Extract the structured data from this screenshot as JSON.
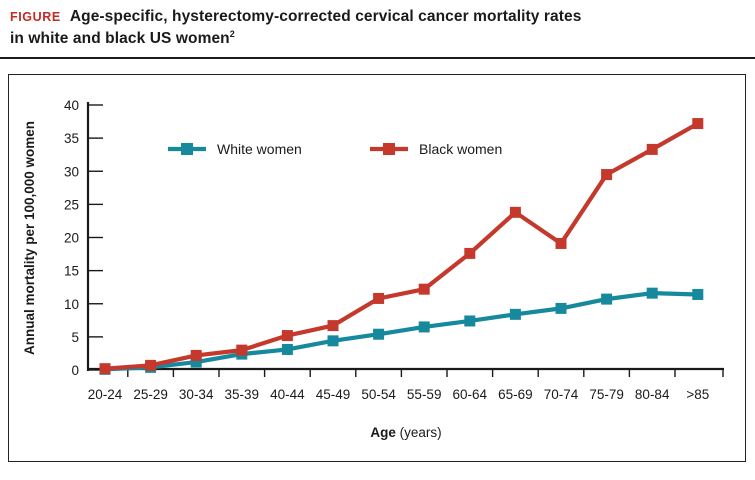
{
  "figure": {
    "label": "FIGURE",
    "title_line1": "Age-specific, hysterectomy-corrected cervical cancer mortality rates",
    "title_line2": "in white and black US women",
    "reference_superscript": "2"
  },
  "colors": {
    "figure_label": "#c22b26",
    "axis": "#1a1a1a",
    "white_women_series": "#17899d",
    "black_women_series": "#c5392c"
  },
  "chart_data": {
    "type": "line",
    "title": "",
    "xlabel": "Age (years)",
    "xlabel_bold_part": "Age",
    "xlabel_regular_part": "(years)",
    "ylabel": "Annual mortality per 100,000 women",
    "ylim": [
      0,
      40
    ],
    "yticks": [
      0,
      5,
      10,
      15,
      20,
      25,
      30,
      35,
      40
    ],
    "grid": false,
    "legend_position": "inside-top",
    "categories": [
      "20-24",
      "25-29",
      "30-34",
      "35-39",
      "40-44",
      "45-49",
      "50-54",
      "55-59",
      "60-64",
      "65-69",
      "70-74",
      "75-79",
      "80-84",
      ">85"
    ],
    "series": [
      {
        "name": "White women",
        "color": "#17899d",
        "values": [
          0.1,
          0.4,
          1.2,
          2.4,
          3.1,
          4.4,
          5.4,
          6.5,
          7.4,
          8.4,
          9.3,
          10.7,
          11.6,
          11.4
        ]
      },
      {
        "name": "Black women",
        "color": "#c5392c",
        "values": [
          0.2,
          0.7,
          2.2,
          3.0,
          5.2,
          6.7,
          10.8,
          12.2,
          17.6,
          23.8,
          19.1,
          29.5,
          33.3,
          37.2
        ]
      }
    ]
  }
}
